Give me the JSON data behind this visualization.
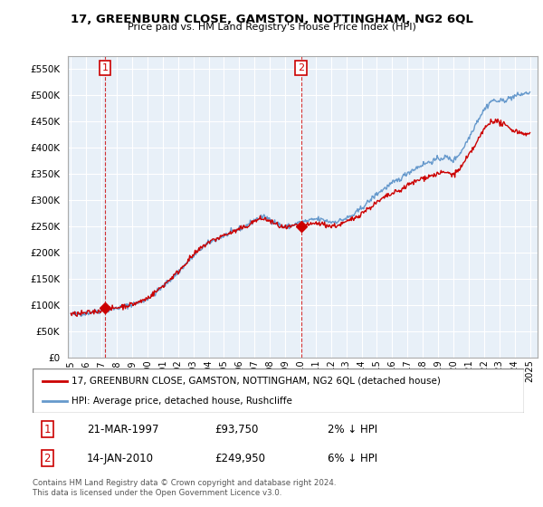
{
  "title": "17, GREENBURN CLOSE, GAMSTON, NOTTINGHAM, NG2 6QL",
  "subtitle": "Price paid vs. HM Land Registry's House Price Index (HPI)",
  "legend_line1": "17, GREENBURN CLOSE, GAMSTON, NOTTINGHAM, NG2 6QL (detached house)",
  "legend_line2": "HPI: Average price, detached house, Rushcliffe",
  "footnote": "Contains HM Land Registry data © Crown copyright and database right 2024.\nThis data is licensed under the Open Government Licence v3.0.",
  "point1_date": "21-MAR-1997",
  "point1_price": "£93,750",
  "point1_hpi": "2% ↓ HPI",
  "point1_x": 1997.22,
  "point1_y": 93750,
  "point2_date": "14-JAN-2010",
  "point2_price": "£249,950",
  "point2_hpi": "6% ↓ HPI",
  "point2_x": 2010.04,
  "point2_y": 249950,
  "red_color": "#cc0000",
  "blue_color": "#6699cc",
  "chart_bg": "#e8f0f8",
  "grid_color": "#ffffff",
  "background_color": "#ffffff",
  "ylim": [
    0,
    575000
  ],
  "xlim": [
    1994.8,
    2025.5
  ],
  "yticks": [
    0,
    50000,
    100000,
    150000,
    200000,
    250000,
    300000,
    350000,
    400000,
    450000,
    500000,
    550000
  ],
  "xticks": [
    1995,
    1996,
    1997,
    1998,
    1999,
    2000,
    2001,
    2002,
    2003,
    2004,
    2005,
    2006,
    2007,
    2008,
    2009,
    2010,
    2011,
    2012,
    2013,
    2014,
    2015,
    2016,
    2017,
    2018,
    2019,
    2020,
    2021,
    2022,
    2023,
    2024,
    2025
  ]
}
